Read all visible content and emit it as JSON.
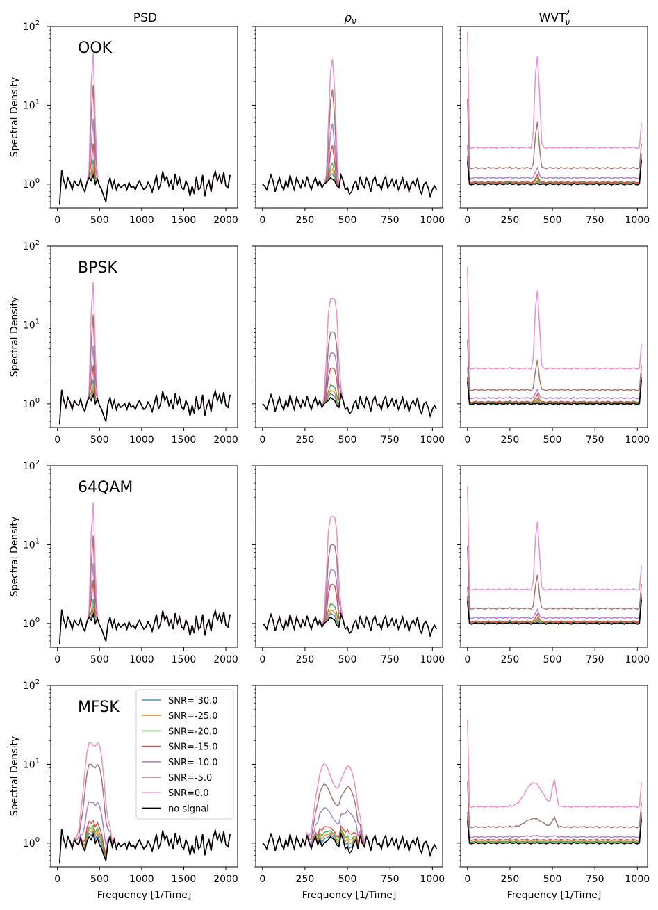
{
  "figure": {
    "column_titles": [
      "PSD",
      "ρ",
      "WVT"
    ],
    "column_title_subs": [
      "",
      "ν",
      "ν"
    ],
    "column_title_sups": [
      "",
      "",
      "2"
    ],
    "row_labels": [
      "OOK",
      "BPSK",
      "64QAM",
      "MFSK"
    ],
    "ylabel": "Spectral Density",
    "xlabel": "Frequency [1/Time]"
  },
  "ytick_labels": [
    {
      "base": "10",
      "exp": "0"
    },
    {
      "base": "10",
      "exp": "1"
    },
    {
      "base": "10",
      "exp": "2"
    }
  ],
  "xtick_labels": {
    "psd": [
      "0",
      "500",
      "1000",
      "1500",
      "2000"
    ],
    "rho": [
      "0",
      "250",
      "500",
      "750",
      "1000"
    ],
    "wvt": [
      "0",
      "250",
      "500",
      "750",
      "1000"
    ]
  },
  "legend": {
    "location": "upper-right",
    "panel": "MFSK-PSD",
    "entries": [
      {
        "label": "SNR=-30.0",
        "color": "#1f77b4"
      },
      {
        "label": "SNR=-25.0",
        "color": "#ff7f0e"
      },
      {
        "label": "SNR=-20.0",
        "color": "#2ca02c"
      },
      {
        "label": "SNR=-15.0",
        "color": "#d62728"
      },
      {
        "label": "SNR=-10.0",
        "color": "#9467bd"
      },
      {
        "label": "SNR=-5.0",
        "color": "#8c564b"
      },
      {
        "label": "SNR=0.0",
        "color": "#e377c2"
      },
      {
        "label": "no signal",
        "color": "#000000"
      }
    ]
  },
  "chart_data": {
    "type": "line",
    "yscale": "log",
    "grid": false,
    "ylim": [
      0.5,
      100
    ],
    "xlim": {
      "psd": [
        -80,
        2140
      ],
      "rho": [
        -40,
        1060
      ],
      "wvt": [
        -40,
        1060
      ]
    },
    "panels_note": "4 rows (modulations) x 3 columns (PSD, rho_nu, WVT^2_nu); values approximate",
    "baseline_psd": {
      "x": [
        25,
        50,
        75,
        100,
        125,
        150,
        175,
        200,
        225,
        250,
        275,
        300,
        325,
        350,
        375,
        400,
        425,
        450,
        475,
        500,
        525,
        550,
        575,
        600,
        625,
        650,
        675,
        700,
        725,
        750,
        775,
        800,
        825,
        850,
        875,
        900,
        925,
        950,
        975,
        1000,
        1025,
        1050,
        1075,
        1100,
        1125,
        1150,
        1175,
        1200,
        1225,
        1250,
        1275,
        1300,
        1325,
        1350,
        1375,
        1400,
        1425,
        1450,
        1475,
        1500,
        1525,
        1550,
        1575,
        1600,
        1625,
        1650,
        1675,
        1700,
        1725,
        1750,
        1775,
        1800,
        1825,
        1850,
        1875,
        1900,
        1925,
        1950,
        1975,
        2000,
        2025,
        2050
      ],
      "y": [
        0.55,
        1.5,
        1.1,
        0.9,
        1.2,
        1.05,
        0.85,
        1.1,
        1.0,
        0.95,
        1.15,
        0.9,
        0.8,
        1.05,
        1.2,
        1.1,
        1.3,
        1.0,
        1.15,
        0.95,
        0.85,
        0.7,
        0.6,
        1.0,
        1.2,
        0.9,
        1.1,
        0.85,
        1.0,
        0.9,
        0.95,
        1.0,
        0.85,
        1.05,
        0.9,
        0.95,
        0.85,
        1.0,
        1.1,
        0.95,
        0.85,
        0.9,
        1.05,
        0.95,
        0.8,
        1.0,
        1.3,
        0.85,
        1.0,
        1.45,
        1.1,
        1.25,
        0.95,
        1.1,
        0.85,
        1.35,
        1.0,
        1.2,
        0.9,
        0.85,
        1.1,
        0.95,
        0.7,
        0.95,
        0.75,
        1.25,
        0.85,
        0.9,
        1.3,
        0.7,
        0.95,
        1.1,
        0.8,
        1.2,
        1.45,
        1.1,
        1.3,
        1.0,
        1.4,
        0.95,
        0.9,
        1.3
      ]
    },
    "baseline_rho": {
      "x": [
        0,
        12,
        25,
        37,
        50,
        62,
        75,
        87,
        100,
        112,
        125,
        137,
        150,
        162,
        175,
        187,
        200,
        212,
        225,
        237,
        250,
        262,
        275,
        287,
        300,
        312,
        325,
        337,
        350,
        362,
        375,
        387,
        400,
        412,
        425,
        437,
        450,
        462,
        475,
        487,
        500,
        512,
        525,
        537,
        550,
        562,
        575,
        587,
        600,
        612,
        625,
        637,
        650,
        662,
        675,
        687,
        700,
        712,
        725,
        737,
        750,
        762,
        775,
        787,
        800,
        812,
        825,
        837,
        850,
        862,
        875,
        887,
        900,
        912,
        925,
        937,
        950,
        962,
        975,
        987,
        1000,
        1012,
        1024
      ],
      "y": [
        1.0,
        0.95,
        0.85,
        1.05,
        1.3,
        1.1,
        0.8,
        1.0,
        1.2,
        0.95,
        0.85,
        1.1,
        0.9,
        1.3,
        1.0,
        0.85,
        1.2,
        1.05,
        0.9,
        1.1,
        0.95,
        1.25,
        1.0,
        0.85,
        1.05,
        1.2,
        0.95,
        1.1,
        0.9,
        1.0,
        1.05,
        1.1,
        1.2,
        1.15,
        1.1,
        0.95,
        0.9,
        1.3,
        1.1,
        0.85,
        0.9,
        0.75,
        0.8,
        1.0,
        1.1,
        0.85,
        1.25,
        1.0,
        0.9,
        1.2,
        1.05,
        0.8,
        1.1,
        1.25,
        0.95,
        1.0,
        0.85,
        1.1,
        1.25,
        0.9,
        1.0,
        1.15,
        0.95,
        1.1,
        0.85,
        1.0,
        1.2,
        0.9,
        1.05,
        0.8,
        1.0,
        1.1,
        0.95,
        1.2,
        0.85,
        0.75,
        1.0,
        1.05,
        0.9,
        0.7,
        0.85,
        0.95,
        0.85
      ]
    },
    "baseline_wvt": {
      "x": [
        0,
        12,
        25,
        37,
        50,
        62,
        75,
        87,
        100,
        112,
        125,
        137,
        150,
        162,
        175,
        187,
        200,
        212,
        225,
        237,
        250,
        262,
        275,
        287,
        300,
        312,
        325,
        337,
        350,
        362,
        375,
        387,
        400,
        412,
        425,
        437,
        450,
        462,
        475,
        487,
        500,
        512,
        525,
        537,
        550,
        562,
        575,
        587,
        600,
        612,
        625,
        637,
        650,
        662,
        675,
        687,
        700,
        712,
        725,
        737,
        750,
        762,
        775,
        787,
        800,
        812,
        825,
        837,
        850,
        862,
        875,
        887,
        900,
        912,
        925,
        937,
        950,
        962,
        975,
        987,
        1000,
        1012,
        1024
      ],
      "y": [
        1.9,
        1.0,
        0.98,
        1.0,
        1.02,
        0.99,
        1.0,
        1.01,
        0.98,
        1.0,
        1.02,
        0.99,
        1.01,
        1.0,
        0.98,
        1.02,
        1.0,
        0.99,
        1.01,
        1.0,
        1.03,
        0.99,
        1.0,
        1.02,
        0.98,
        1.0,
        1.01,
        0.99,
        1.02,
        1.0,
        0.98,
        1.01,
        1.0,
        1.02,
        0.99,
        1.0,
        1.01,
        0.98,
        1.0,
        1.02,
        0.99,
        1.0,
        1.01,
        0.98,
        1.02,
        1.0,
        0.99,
        1.01,
        1.0,
        0.98,
        1.02,
        1.0,
        0.99,
        1.01,
        1.0,
        1.02,
        0.98,
        1.0,
        1.01,
        0.99,
        1.0,
        1.02,
        0.98,
        1.0,
        1.01,
        0.99,
        1.02,
        1.0,
        0.98,
        1.01,
        1.0,
        0.99,
        1.02,
        1.0,
        0.98,
        1.01,
        1.0,
        0.99,
        1.02,
        1.0,
        0.98,
        1.01,
        2.0
      ]
    },
    "series_peak_amplitudes": {
      "legend_order": [
        "SNR=-30.0",
        "SNR=-25.0",
        "SNR=-20.0",
        "SNR=-15.0",
        "SNR=-10.0",
        "SNR=-5.0",
        "SNR=0.0"
      ],
      "OOK": {
        "psd": [
          0.2,
          0.4,
          0.8,
          2.1,
          5.8,
          18,
          48
        ],
        "rho": [
          0.2,
          0.4,
          0.7,
          2.0,
          4.8,
          15,
          38
        ],
        "wvt_level": [
          1.0,
          1.01,
          1.03,
          1.06,
          1.2,
          1.6,
          2.9
        ],
        "wvt_peak": [
          1.05,
          1.1,
          1.2,
          1.3,
          1.6,
          6.3,
          43
        ],
        "wvt_edge": [
          2.0,
          2.0,
          2.1,
          2.3,
          3.1,
          12,
          85
        ]
      },
      "BPSK": {
        "psd": [
          0.2,
          0.4,
          0.8,
          1.9,
          4.5,
          13,
          36
        ],
        "rho_plateau": [
          0.15,
          0.3,
          0.55,
          1.7,
          3.3,
          7.1,
          21
        ],
        "wvt_level": [
          1.0,
          1.01,
          1.03,
          1.06,
          1.18,
          1.5,
          2.8
        ],
        "wvt_peak": [
          1.05,
          1.1,
          1.15,
          1.3,
          1.5,
          3.6,
          28
        ],
        "wvt_edge": [
          2.0,
          2.0,
          2.1,
          2.2,
          2.9,
          6.5,
          55
        ]
      },
      "64QAM": {
        "psd": [
          0.2,
          0.4,
          0.8,
          2.4,
          4.8,
          12.5,
          35
        ],
        "rho_plateau": [
          0.15,
          0.3,
          0.6,
          2.0,
          3.7,
          9.0,
          22
        ],
        "wvt_level": [
          1.0,
          1.01,
          1.03,
          1.06,
          1.18,
          1.55,
          2.7
        ],
        "wvt_peak": [
          1.05,
          1.1,
          1.15,
          1.3,
          1.5,
          4.2,
          20
        ],
        "wvt_edge": [
          2.0,
          2.0,
          2.1,
          2.2,
          2.9,
          9.5,
          55
        ]
      },
      "MFSK": {
        "psd_peaks_at": [
          380,
          490
        ],
        "psd": [
          0.1,
          0.2,
          0.3,
          0.5,
          1.6,
          6.5,
          13
        ],
        "rho_peaks_at": [
          360,
          510
        ],
        "rho": [
          0.1,
          0.2,
          0.3,
          0.5,
          1.5,
          3.8,
          7.5
        ],
        "wvt_level": [
          1.0,
          1.02,
          1.05,
          1.1,
          1.2,
          1.6,
          2.9
        ],
        "wvt_bump": [
          1.0,
          1.02,
          1.05,
          1.1,
          1.25,
          2.2,
          6.8
        ],
        "wvt_edge": [
          2.0,
          2.0,
          2.1,
          2.2,
          2.5,
          6.0,
          36
        ]
      }
    }
  }
}
